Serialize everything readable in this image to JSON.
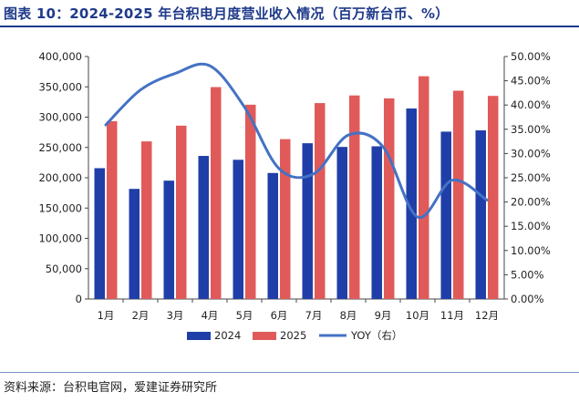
{
  "header": {
    "title": "图表 10：2024-2025 年台积电月度营业收入情况（百万新台币、%）"
  },
  "footer": {
    "source": "资料来源：台积电官网，爱建证券研究所"
  },
  "chart_data": {
    "type": "bar",
    "title": "图表 10：2024-2025 年台积电月度营业收入情况（百万新台币、%）",
    "categories": [
      "1月",
      "2月",
      "3月",
      "4月",
      "5月",
      "6月",
      "7月",
      "8月",
      "9月",
      "10月",
      "11月",
      "12月"
    ],
    "series": [
      {
        "name": "2024",
        "type": "bar",
        "axis": "left",
        "color": "#1f3ea8",
        "values": [
          215785,
          181648,
          195211,
          236021,
          229620,
          207869,
          256953,
          250866,
          251873,
          314240,
          276058,
          278163
        ]
      },
      {
        "name": "2025",
        "type": "bar",
        "axis": "left",
        "color": "#e05a5a",
        "values": [
          293288,
          260009,
          285957,
          349567,
          320516,
          263709,
          323166,
          335772,
          330980,
          367473,
          343614,
          335003
        ]
      },
      {
        "name": "YOY（右）",
        "type": "line",
        "axis": "right",
        "color": "#4472c4",
        "values": [
          35.9,
          43.1,
          46.5,
          48.1,
          39.6,
          26.9,
          25.8,
          33.8,
          31.4,
          16.9,
          24.5,
          20.4
        ]
      }
    ],
    "left_axis": {
      "ylim": [
        0,
        400000
      ],
      "ticks": [
        "0",
        "50,000",
        "100,000",
        "150,000",
        "200,000",
        "250,000",
        "300,000",
        "350,000",
        "400,000"
      ]
    },
    "right_axis": {
      "ylim": [
        0,
        50
      ],
      "ticks": [
        "0.00%",
        "5.00%",
        "10.00%",
        "15.00%",
        "20.00%",
        "25.00%",
        "30.00%",
        "35.00%",
        "40.00%",
        "45.00%",
        "50.00%"
      ]
    },
    "legend": {
      "placement": "bottom",
      "labels": [
        "2024",
        "2025",
        "YOY（右）"
      ]
    },
    "grid": false
  }
}
